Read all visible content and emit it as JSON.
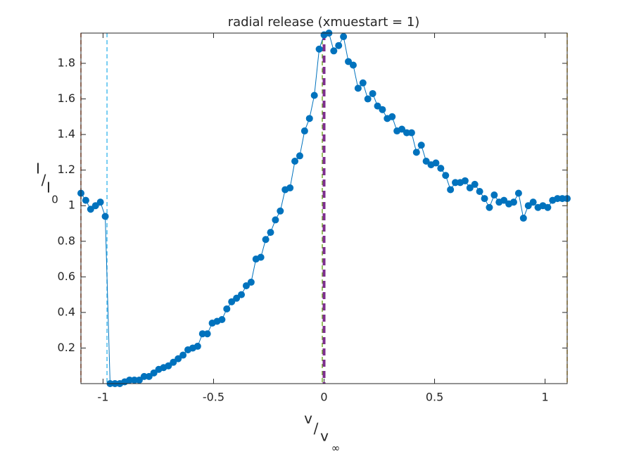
{
  "chart_data": {
    "type": "line",
    "title": "radial release (xmuestart = 1)",
    "xlabel": {
      "numerator": "v",
      "slash": "/",
      "denominator": "v",
      "sub": "∞"
    },
    "ylabel": {
      "numerator": "I",
      "slash": "/",
      "denominator": "I",
      "sub": "0"
    },
    "x": [
      -1.1,
      -1.078,
      -1.056,
      -1.034,
      -1.012,
      -0.99,
      -0.968,
      -0.946,
      -0.924,
      -0.902,
      -0.88,
      -0.858,
      -0.836,
      -0.814,
      -0.792,
      -0.77,
      -0.748,
      -0.726,
      -0.704,
      -0.682,
      -0.66,
      -0.638,
      -0.616,
      -0.594,
      -0.572,
      -0.55,
      -0.528,
      -0.506,
      -0.484,
      -0.462,
      -0.44,
      -0.418,
      -0.396,
      -0.374,
      -0.352,
      -0.33,
      -0.308,
      -0.286,
      -0.264,
      -0.242,
      -0.22,
      -0.198,
      -0.176,
      -0.154,
      -0.132,
      -0.11,
      -0.088,
      -0.066,
      -0.044,
      -0.022,
      0,
      0.022,
      0.044,
      0.066,
      0.088,
      0.11,
      0.132,
      0.154,
      0.176,
      0.198,
      0.22,
      0.242,
      0.264,
      0.286,
      0.308,
      0.33,
      0.352,
      0.374,
      0.396,
      0.418,
      0.44,
      0.462,
      0.484,
      0.506,
      0.528,
      0.55,
      0.572,
      0.594,
      0.616,
      0.638,
      0.66,
      0.682,
      0.704,
      0.726,
      0.748,
      0.77,
      0.792,
      0.814,
      0.836,
      0.858,
      0.88,
      0.902,
      0.924,
      0.946,
      0.968,
      0.99,
      1.012,
      1.034,
      1.056,
      1.078,
      1.1
    ],
    "series": [
      {
        "color": "#0072bd",
        "values": [
          1.07,
          1.03,
          0.98,
          1.0,
          1.02,
          0.94,
          0.0,
          0.0,
          0.0,
          0.01,
          0.02,
          0.02,
          0.02,
          0.04,
          0.04,
          0.06,
          0.08,
          0.09,
          0.1,
          0.12,
          0.14,
          0.16,
          0.19,
          0.2,
          0.21,
          0.28,
          0.28,
          0.34,
          0.35,
          0.36,
          0.42,
          0.46,
          0.48,
          0.5,
          0.55,
          0.57,
          0.7,
          0.71,
          0.81,
          0.85,
          0.92,
          0.97,
          1.09,
          1.1,
          1.25,
          1.28,
          1.42,
          1.49,
          1.62,
          1.88,
          1.96,
          1.97,
          1.87,
          1.9,
          1.95,
          1.81,
          1.79,
          1.66,
          1.69,
          1.6,
          1.63,
          1.56,
          1.54,
          1.49,
          1.5,
          1.42,
          1.43,
          1.41,
          1.41,
          1.3,
          1.34,
          1.25,
          1.23,
          1.24,
          1.21,
          1.17,
          1.09,
          1.13,
          1.13,
          1.14,
          1.1,
          1.12,
          1.08,
          1.04,
          0.99,
          1.06,
          1.02,
          1.03,
          1.01,
          1.02,
          1.07,
          0.93,
          1.0,
          1.02,
          0.99,
          1.0,
          0.99,
          1.03,
          1.04,
          1.04,
          1.04
        ]
      }
    ],
    "vlines": [
      {
        "x": -1.1,
        "color": "#d95319",
        "width": 1.5
      },
      {
        "x": -0.982,
        "color": "#4dbeee",
        "width": 1.5
      },
      {
        "x": -0.008,
        "color": "#77ac30",
        "width": 1.5
      },
      {
        "x": 0.0,
        "color": "#7e2f8e",
        "width": 4
      },
      {
        "x": 1.1,
        "color": "#edb120",
        "width": 1.5
      }
    ],
    "xlim": [
      -1.1,
      1.1
    ],
    "ylim": [
      0,
      1.97
    ],
    "xticks": [
      -1,
      -0.5,
      0,
      0.5,
      1
    ],
    "yticks": [
      0.2,
      0.4,
      0.6,
      0.8,
      1,
      1.2,
      1.4,
      1.6,
      1.8
    ],
    "grid": false
  }
}
